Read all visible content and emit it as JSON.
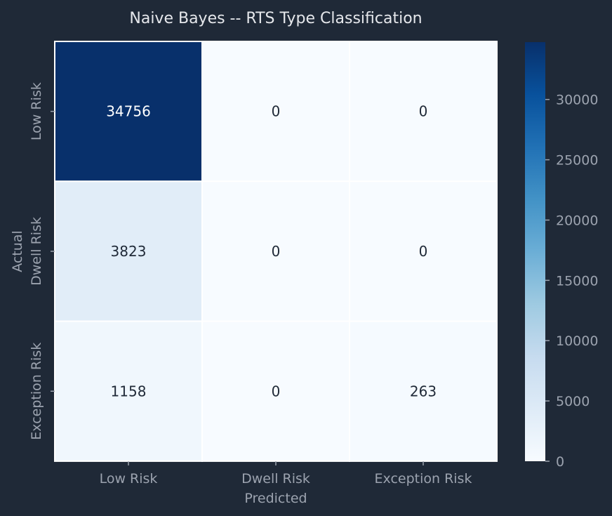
{
  "chart_data": {
    "type": "heatmap",
    "title": "Naive Bayes -- RTS Type Classification",
    "xlabel": "Predicted",
    "ylabel": "Actual",
    "x_categories": [
      "Low Risk",
      "Dwell Risk",
      "Exception Risk"
    ],
    "y_categories": [
      "Low Risk",
      "Dwell Risk",
      "Exception Risk"
    ],
    "values": [
      [
        34756,
        0,
        0
      ],
      [
        3823,
        0,
        0
      ],
      [
        1158,
        0,
        263
      ]
    ],
    "colorbar": {
      "ticks": [
        "0",
        "5000",
        "10000",
        "15000",
        "20000",
        "25000",
        "30000"
      ],
      "range": [
        0,
        34756
      ],
      "colormap": "Blues"
    },
    "grid": false
  },
  "colors": {
    "background": "#1f2937",
    "title_text": "#e5e7eb",
    "axis_text": "#9ca3af",
    "cell_border": "#ffffff",
    "dark_label": "#1f2937",
    "light_label": "#ffffff"
  }
}
